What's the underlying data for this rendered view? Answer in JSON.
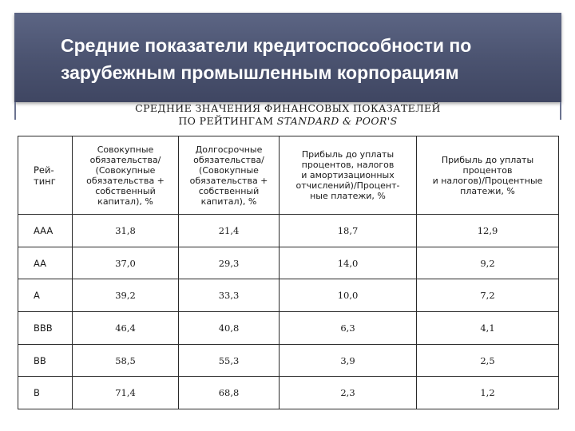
{
  "slide": {
    "title_line1": "Средние показатели кредитоспособности по",
    "title_line2": "зарубежным промышленным корпорациям"
  },
  "table_caption": {
    "line1": "СРЕДНИЕ ЗНАЧЕНИЯ ФИНАНСОВЫХ ПОКАЗАТЕЛЕЙ",
    "line2_prefix": "ПО РЕЙТИНГАМ ",
    "line2_italic": "STANDARD & POOR'S"
  },
  "table": {
    "headers": [
      [
        "Рей-",
        "тинг"
      ],
      [
        "Совокупные",
        "обязательства/",
        "(Совокупные",
        "обязательства +",
        "собственный",
        "капитал), %"
      ],
      [
        "Долгосрочные",
        "обязательства/",
        "(Совокупные",
        "обязательства +",
        "собственный",
        "капитал), %"
      ],
      [
        "Прибыль до уплаты",
        "процентов, налогов",
        "и амортизационных",
        "отчислений)/Процент-",
        "ные платежи, %"
      ],
      [
        "Прибыль до уплаты",
        "процентов",
        "и налогов)/Процентные",
        "платежи, %"
      ]
    ],
    "rows": [
      {
        "rating": "AAA",
        "c1": "31,8",
        "c2": "21,4",
        "c3": "18,7",
        "c4": "12,9"
      },
      {
        "rating": "AA",
        "c1": "37,0",
        "c2": "29,3",
        "c3": "14,0",
        "c4": "9,2"
      },
      {
        "rating": "A",
        "c1": "39,2",
        "c2": "33,3",
        "c3": "10,0",
        "c4": "7,2"
      },
      {
        "rating": "BBB",
        "c1": "46,4",
        "c2": "40,8",
        "c3": "6,3",
        "c4": "4,1"
      },
      {
        "rating": "BB",
        "c1": "58,5",
        "c2": "55,3",
        "c3": "3,9",
        "c4": "2,5"
      },
      {
        "rating": "B",
        "c1": "71,4",
        "c2": "68,8",
        "c3": "2,3",
        "c4": "1,2"
      }
    ]
  },
  "colors": {
    "header_band": "#4a526f",
    "header_text": "#ffffff",
    "table_border": "#2a2a2a"
  }
}
